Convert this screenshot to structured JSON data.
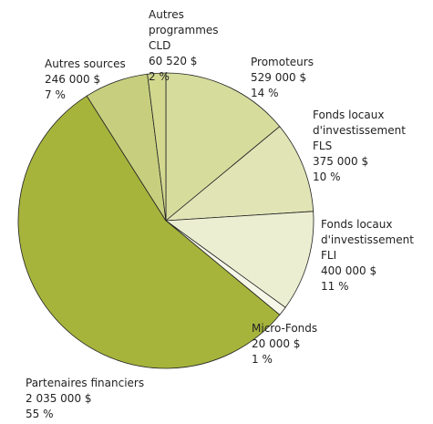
{
  "chart_data": {
    "type": "pie",
    "categories": [
      "Promoteurs",
      "Fonds locaux d'investissement FLS",
      "Fonds locaux d'investissement FLI",
      "Micro-Fonds",
      "Partenaires financiers",
      "Autres sources",
      "Autres programmes CLD"
    ],
    "amounts": [
      "529 000 $",
      "375 000 $",
      "400 000 $",
      "20 000 $",
      "2 035 000 $",
      "246 000 $",
      "60 520 $"
    ],
    "values": [
      14,
      10,
      11,
      1,
      55,
      7,
      2
    ],
    "value_labels": [
      "14 %",
      "10 %",
      "11 %",
      "1 %",
      "55 %",
      "7 %",
      "2 %"
    ],
    "colors": [
      "#d6dc9c",
      "#e1e5b6",
      "#ebeed1",
      "#f6f7e8",
      "#a6b43c",
      "#c7cf7e",
      "#d2d88e"
    ]
  }
}
